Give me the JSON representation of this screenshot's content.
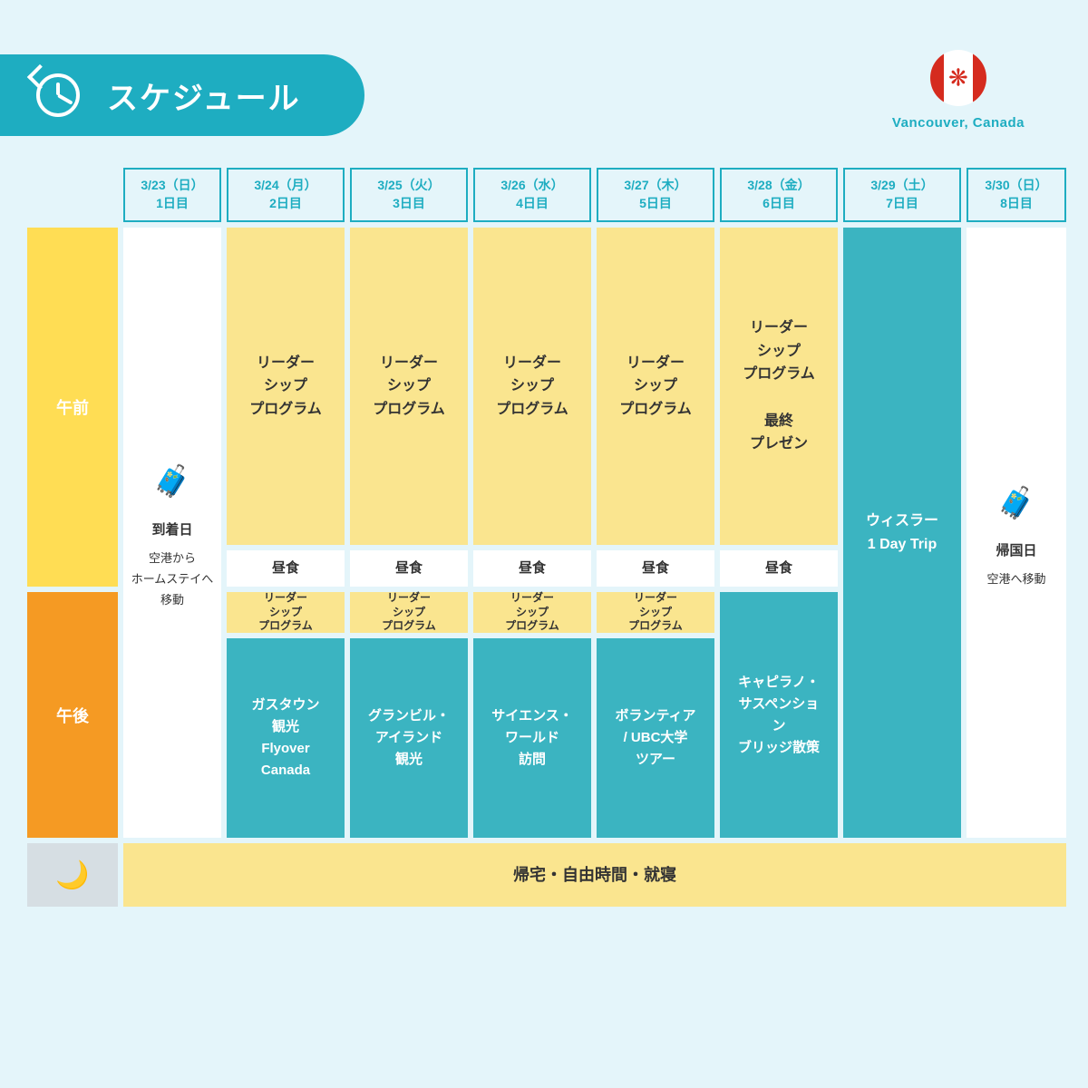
{
  "header": {
    "title": "スケジュール"
  },
  "flag": {
    "label": "Vancouver, Canada"
  },
  "time_labels": {
    "morning": "午前",
    "afternoon": "午後"
  },
  "days": [
    {
      "date": "3/23（日）",
      "num": "1日目"
    },
    {
      "date": "3/24（月）",
      "num": "2日目"
    },
    {
      "date": "3/25（火）",
      "num": "3日目"
    },
    {
      "date": "3/26（水）",
      "num": "4日目"
    },
    {
      "date": "3/27（木）",
      "num": "5日目"
    },
    {
      "date": "3/28（金）",
      "num": "6日目"
    },
    {
      "date": "3/29（土）",
      "num": "7日目"
    },
    {
      "date": "3/30（日）",
      "num": "8日目"
    }
  ],
  "arrival": {
    "title": "到着日",
    "sub": "空港から\nホームステイへ\n移動"
  },
  "departure": {
    "title": "帰国日",
    "sub": "空港へ移動"
  },
  "program": "リーダー\nシップ\nプログラム",
  "program_final": "リーダー\nシップ\nプログラム\n\n最終\nプレゼン",
  "lunch": "昼食",
  "afternoon_acts": [
    "ガスタウン\n観光\nFlyover\nCanada",
    "グランビル・\nアイランド\n観光",
    "サイエンス・\nワールド\n訪問",
    "ボランティア\n/ UBC大学\nツアー",
    "キャピラノ・\nサスペンショ\nン\nブリッジ散策"
  ],
  "whistler": "ウィスラー\n1 Day Trip",
  "night": "帰宅・自由時間・就寝",
  "colors": {
    "bg": "#e4f5fa",
    "accent": "#1eadc1",
    "yellow": "#fae58f",
    "yellow_bright": "#ffdd54",
    "orange": "#f59a23",
    "teal": "#3bb4c1"
  }
}
